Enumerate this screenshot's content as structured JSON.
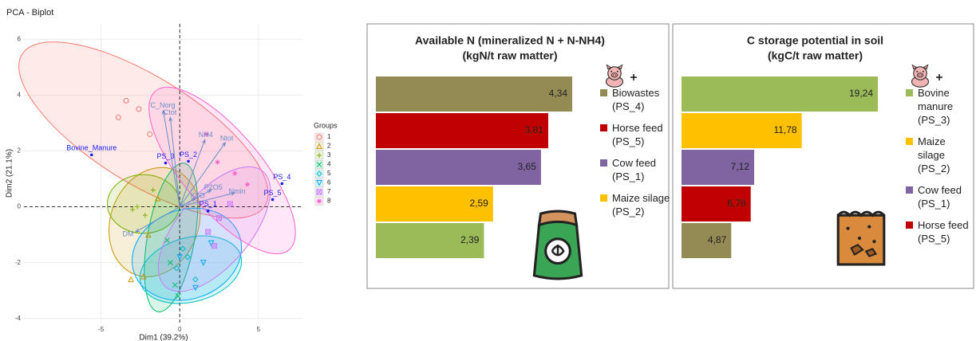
{
  "chart_data": [
    {
      "type": "biplot",
      "title": "PCA - Biplot",
      "xlabel": "Dim1 (39.2%)",
      "ylabel": "Dim2 (21.1%)",
      "xlim": [
        -9.9,
        7.85
      ],
      "ylim": [
        -4.15,
        6.55
      ],
      "xticks": [
        -5,
        0,
        5
      ],
      "yticks": [
        -4,
        -2,
        0,
        2,
        4,
        6
      ],
      "grid": true,
      "legend_title": "Groups",
      "groups": [
        {
          "name": "1",
          "color": "#F8766D",
          "shape": "circle",
          "points": [
            [
              -3.4,
              3.8
            ],
            [
              -2.6,
              3.5
            ],
            [
              -3.9,
              3.2
            ],
            [
              -1.9,
              2.6
            ]
          ],
          "ellipse": {
            "cx": -2.3,
            "cy": 2.75,
            "rx": 9.1,
            "ry": 1.9,
            "angle": 32
          }
        },
        {
          "name": "2",
          "color": "#CD9600",
          "shape": "triangle",
          "points": [
            [
              -2.3,
              -2.5
            ],
            [
              -3.1,
              -2.6
            ],
            [
              -2.0,
              -1.0
            ],
            [
              -1.4,
              0.3
            ]
          ],
          "ellipse": {
            "cx": -1.6,
            "cy": -0.55,
            "rx": 2.8,
            "ry": 2.0,
            "angle": 20
          }
        },
        {
          "name": "3",
          "color": "#7CAE00",
          "shape": "plus",
          "points": [
            [
              -2.7,
              0.0
            ],
            [
              -2.2,
              -0.3
            ],
            [
              -1.7,
              0.6
            ],
            [
              -3.0,
              -0.1
            ]
          ],
          "ellipse": {
            "cx": -2.3,
            "cy": 0.1,
            "rx": 2.3,
            "ry": 1.05,
            "angle": 0
          }
        },
        {
          "name": "4",
          "color": "#00BE67",
          "shape": "cross",
          "points": [
            [
              -0.6,
              -2.0
            ],
            [
              -0.3,
              -2.8
            ],
            [
              -0.8,
              -1.2
            ],
            [
              -0.1,
              -3.2
            ]
          ],
          "ellipse": {
            "cx": -0.55,
            "cy": -1.1,
            "rx": 1.5,
            "ry": 2.7,
            "angle": 10
          }
        },
        {
          "name": "5",
          "color": "#00BFC4",
          "shape": "diamond",
          "points": [
            [
              0.5,
              -1.8
            ],
            [
              -0.2,
              -2.2
            ],
            [
              1.0,
              -2.6
            ],
            [
              0.2,
              -1.5
            ]
          ],
          "ellipse": {
            "cx": 0.7,
            "cy": -2.25,
            "rx": 3.3,
            "ry": 1.15,
            "angle": -15
          }
        },
        {
          "name": "6",
          "color": "#00A9FF",
          "shape": "triangle-down",
          "points": [
            [
              1.5,
              -2.0
            ],
            [
              1.0,
              -2.9
            ],
            [
              0.0,
              -1.8
            ],
            [
              2.0,
              -1.3
            ]
          ],
          "ellipse": {
            "cx": 0.45,
            "cy": -1.7,
            "rx": 3.55,
            "ry": 1.6,
            "angle": -20
          }
        },
        {
          "name": "7",
          "color": "#C77CFF",
          "shape": "square",
          "points": [
            [
              2.5,
              -0.4
            ],
            [
              1.8,
              -0.9
            ],
            [
              3.2,
              0.1
            ],
            [
              2.2,
              -1.4
            ]
          ],
          "ellipse": {
            "cx": 2.2,
            "cy": -0.8,
            "rx": 4.8,
            "ry": 1.3,
            "angle": -50
          }
        },
        {
          "name": "8",
          "color": "#FF61CC",
          "shape": "asterisk",
          "points": [
            [
              3.5,
              1.2
            ],
            [
              2.4,
              1.6
            ],
            [
              4.3,
              0.8
            ],
            [
              1.7,
              2.6
            ]
          ],
          "ellipse": {
            "cx": 2.7,
            "cy": 1.3,
            "rx": 6.6,
            "ry": 1.4,
            "angle": 50
          }
        }
      ],
      "variables": [
        {
          "name": "C_Norg",
          "x": -1.05,
          "y": 3.45
        },
        {
          "name": "Ctot",
          "x": -0.6,
          "y": 3.2
        },
        {
          "name": "NH4",
          "x": 1.6,
          "y": 2.4
        },
        {
          "name": "Ntot",
          "x": 2.9,
          "y": 2.3
        },
        {
          "name": "P2O5",
          "x": 2.0,
          "y": 0.6
        },
        {
          "name": "K2O",
          "x": 1.0,
          "y": 0.3
        },
        {
          "name": "Nmin",
          "x": 3.5,
          "y": 0.5
        },
        {
          "name": "DM",
          "x": -2.8,
          "y": -0.9
        }
      ],
      "individuals": [
        {
          "label": "Bovine_Manure",
          "x": -5.6,
          "y": 1.86
        },
        {
          "label": "PS_3",
          "x": -0.9,
          "y": 1.57
        },
        {
          "label": "PS_2",
          "x": 0.55,
          "y": 1.63
        },
        {
          "label": "PS_1",
          "x": 1.8,
          "y": -0.15
        },
        {
          "label": "PS_5",
          "x": 5.9,
          "y": 0.26
        },
        {
          "label": "PS_4",
          "x": 6.5,
          "y": 0.83
        }
      ]
    },
    {
      "type": "bar",
      "title": "Available N (mineralized N + N-NH4)",
      "subtitle": "(kgN/t raw matter)",
      "categories": [
        "Biowastes (PS_4)",
        "Horse feed (PS_5)",
        "Cow feed (PS_1)",
        "Maize silage (PS_2)",
        null
      ],
      "values": [
        4.34,
        3.81,
        3.65,
        2.59,
        2.39
      ],
      "value_labels": [
        "4,34",
        "3,81",
        "3,65",
        "2,59",
        "2,39"
      ],
      "colors": [
        "#948A54",
        "#C00000",
        "#8064A2",
        "#FFC000",
        "#9BBB59"
      ]
    },
    {
      "type": "bar",
      "title": "C storage potential in soil",
      "subtitle": "(kgC/t raw matter)",
      "categories": [
        "Bovine manure (PS_3)",
        "Maize silage (PS_2)",
        "Cow feed (PS_1)",
        "Horse feed (PS_5)",
        null
      ],
      "values": [
        19.24,
        11.78,
        7.12,
        6.78,
        4.87
      ],
      "value_labels": [
        "19,24",
        "11,78",
        "7,12",
        "6,78",
        "4,87"
      ],
      "colors": [
        "#9BBB59",
        "#FFC000",
        "#8064A2",
        "#C00000",
        "#948A54"
      ]
    }
  ]
}
